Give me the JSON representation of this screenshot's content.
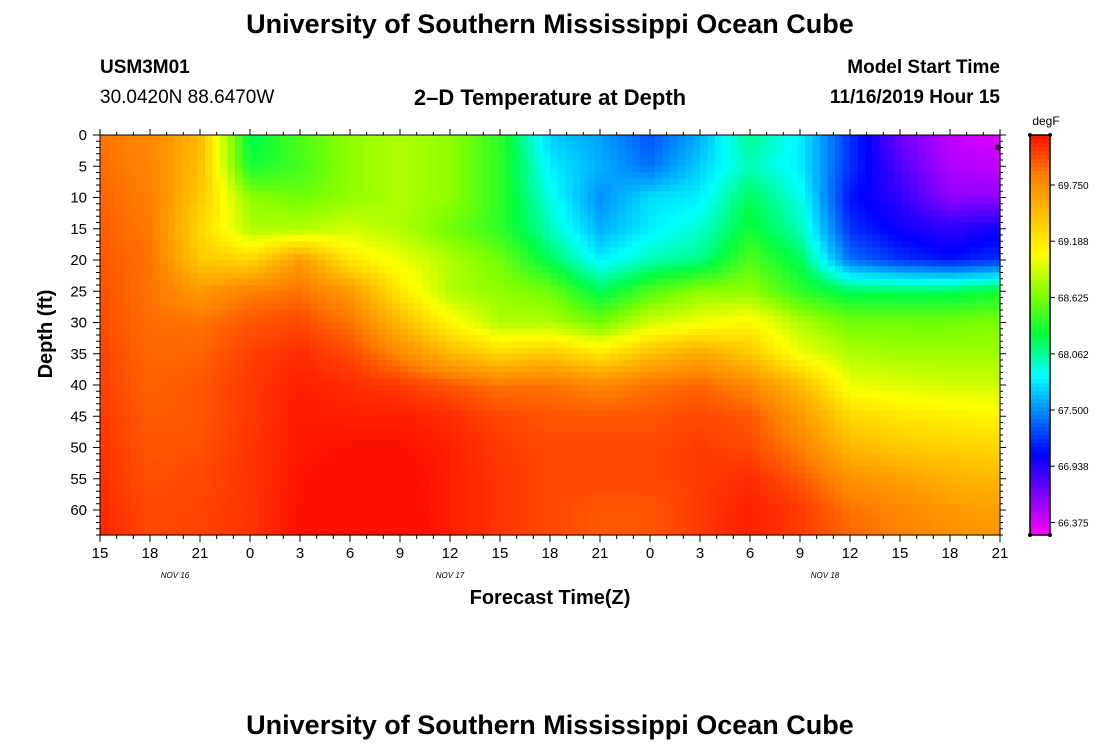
{
  "header": {
    "title": "University of Southern Mississippi Ocean Cube",
    "station_id": "USM3M01",
    "location": "30.0420N 88.6470W",
    "plot_title": "2–D Temperature at Depth",
    "model_start_label": "Model Start Time",
    "model_start_value": "11/16/2019 Hour 15"
  },
  "footer": {
    "title": "University of Southern Mississippi Ocean Cube"
  },
  "chart_data": {
    "type": "heatmap",
    "title": "2–D Temperature at Depth",
    "xlabel": "Forecast Time(Z)",
    "ylabel": "Depth (ft)",
    "x_tick_labels": [
      "15",
      "18",
      "21",
      "0",
      "3",
      "6",
      "9",
      "12",
      "15",
      "18",
      "21",
      "0",
      "3",
      "6",
      "9",
      "12",
      "15",
      "18",
      "21"
    ],
    "x_range_hours": [
      0,
      54
    ],
    "date_labels": [
      {
        "text": "NOV 16",
        "hour": 4.5
      },
      {
        "text": "NOV 17",
        "hour": 21
      },
      {
        "text": "NOV 18",
        "hour": 43.5
      }
    ],
    "y_tick_labels": [
      "0",
      "5",
      "10",
      "15",
      "20",
      "25",
      "30",
      "35",
      "40",
      "45",
      "50",
      "55",
      "60"
    ],
    "ylim": [
      0,
      64
    ],
    "colorbar": {
      "unit": "degF",
      "labels": [
        "69.750",
        "69.188",
        "68.625",
        "68.062",
        "67.500",
        "66.938",
        "66.375"
      ],
      "range": [
        66.25,
        70.25
      ],
      "colors": [
        "#ff00ff",
        "#8000ff",
        "#0000ff",
        "#0080ff",
        "#00ffff",
        "#00ff40",
        "#80ff00",
        "#ffff00",
        "#ffc000",
        "#ff8000",
        "#ff1000"
      ]
    },
    "depth_grid_ft": [
      0,
      5,
      10,
      15,
      20,
      25,
      30,
      35,
      40,
      45,
      50,
      55,
      60,
      64
    ],
    "time_grid_hours": [
      0,
      3,
      6,
      9,
      12,
      15,
      18,
      21,
      24,
      27,
      30,
      33,
      36,
      39,
      42,
      45,
      48,
      51,
      54
    ],
    "temperature_degF": [
      [
        69.9,
        69.8,
        69.5,
        68.2,
        68.5,
        68.7,
        68.8,
        68.7,
        68.4,
        67.7,
        67.55,
        67.3,
        67.6,
        68.1,
        67.8,
        67.2,
        66.7,
        66.45,
        66.35
      ],
      [
        69.92,
        69.82,
        69.45,
        68.3,
        68.45,
        68.7,
        68.8,
        68.7,
        68.4,
        67.8,
        67.6,
        67.4,
        67.7,
        68.0,
        67.8,
        67.2,
        66.8,
        66.5,
        66.45
      ],
      [
        69.95,
        69.85,
        69.4,
        68.7,
        68.6,
        68.7,
        68.8,
        68.7,
        68.4,
        67.9,
        67.5,
        67.75,
        67.8,
        68.2,
        67.9,
        67.1,
        66.9,
        66.6,
        66.6
      ],
      [
        69.97,
        69.87,
        69.3,
        68.8,
        68.8,
        68.9,
        68.8,
        68.6,
        68.4,
        68.0,
        67.6,
        67.8,
        67.95,
        68.3,
        68.0,
        67.2,
        67.0,
        66.9,
        67.0
      ],
      [
        70.0,
        69.9,
        69.4,
        69.3,
        69.7,
        69.2,
        69.0,
        68.8,
        68.6,
        68.2,
        67.8,
        68.0,
        68.1,
        68.5,
        68.2,
        67.4,
        67.2,
        67.1,
        67.2
      ],
      [
        70.02,
        69.9,
        69.7,
        69.85,
        69.9,
        69.7,
        69.2,
        68.8,
        68.7,
        68.6,
        68.2,
        68.5,
        68.7,
        68.7,
        68.4,
        68.2,
        68.2,
        68.2,
        68.3
      ],
      [
        70.04,
        69.92,
        69.9,
        70.0,
        70.05,
        69.9,
        69.5,
        69.1,
        68.8,
        68.8,
        68.6,
        68.9,
        69.0,
        69.1,
        68.8,
        68.6,
        68.6,
        68.6,
        68.65
      ],
      [
        70.06,
        69.94,
        69.95,
        70.08,
        70.15,
        70.05,
        69.8,
        69.5,
        69.3,
        69.4,
        69.2,
        69.45,
        69.6,
        69.4,
        69.0,
        68.8,
        68.75,
        68.75,
        68.75
      ],
      [
        70.08,
        69.96,
        70.0,
        70.1,
        70.2,
        70.15,
        70.1,
        70.0,
        69.9,
        69.9,
        69.8,
        69.9,
        69.95,
        69.8,
        69.5,
        69.0,
        68.95,
        68.9,
        68.9
      ],
      [
        70.1,
        69.98,
        70.0,
        70.1,
        70.22,
        70.2,
        70.2,
        70.15,
        70.05,
        70.0,
        70.0,
        70.0,
        70.05,
        70.0,
        69.7,
        69.3,
        69.2,
        69.15,
        69.1
      ],
      [
        70.12,
        70.0,
        70.02,
        70.12,
        70.22,
        70.25,
        70.25,
        70.2,
        70.1,
        70.05,
        70.05,
        70.05,
        70.1,
        70.05,
        69.85,
        69.5,
        69.4,
        69.35,
        69.3
      ],
      [
        70.14,
        70.02,
        70.05,
        70.12,
        70.24,
        70.3,
        70.3,
        70.2,
        70.12,
        70.05,
        70.05,
        70.05,
        70.1,
        70.15,
        70.0,
        69.75,
        69.65,
        69.55,
        69.5
      ],
      [
        70.16,
        70.04,
        70.07,
        70.12,
        70.25,
        70.3,
        70.3,
        70.2,
        70.12,
        70.05,
        70.0,
        70.0,
        70.1,
        70.2,
        70.1,
        69.9,
        69.8,
        69.7,
        69.65
      ],
      [
        70.18,
        70.06,
        70.08,
        70.12,
        70.26,
        70.3,
        70.3,
        70.2,
        70.12,
        70.05,
        70.0,
        70.0,
        70.1,
        70.2,
        70.1,
        69.95,
        69.85,
        69.75,
        69.7
      ]
    ]
  }
}
